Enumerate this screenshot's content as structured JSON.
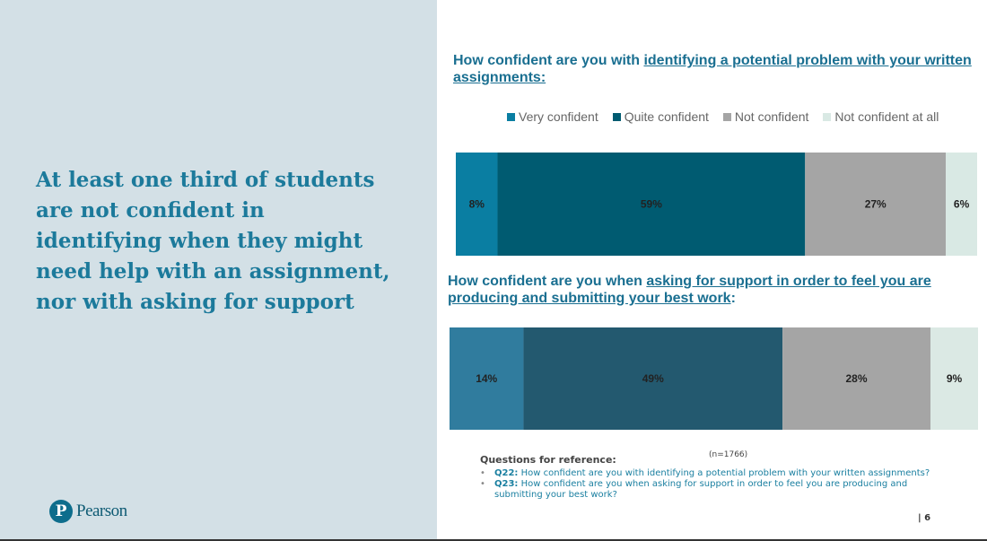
{
  "headline": "At least one third of students are not confident in identifying when they might need help with an assignment, nor with asking for support",
  "logo_text": "Pearson",
  "chart_data": [
    {
      "type": "bar",
      "stacked": true,
      "orientation": "horizontal",
      "title_plain": "How confident are you with ",
      "title_underlined": "identifying a potential problem with your written assignments:",
      "title_suffix": "",
      "categories": [
        "Very confident",
        "Quite confident",
        "Not confident",
        "Not confident at all"
      ],
      "values": [
        8,
        59,
        27,
        6
      ],
      "labels": [
        "8%",
        "59%",
        "27%",
        "6%"
      ],
      "colors": [
        "#0a7ea2",
        "#005b71",
        "#a5a5a5",
        "#d9e9e4"
      ]
    },
    {
      "type": "bar",
      "stacked": true,
      "orientation": "horizontal",
      "title_plain": "How confident are you when ",
      "title_underlined": "asking for support in order to feel you are producing and submitting your best work",
      "title_suffix": ":",
      "categories": [
        "Very confident",
        "Quite confident",
        "Not confident",
        "Not confident at all"
      ],
      "values": [
        14,
        49,
        28,
        9
      ],
      "labels": [
        "14%",
        "49%",
        "28%",
        "9%"
      ],
      "colors": [
        "#307c9e",
        "#23596f",
        "#a5a5a5",
        "#dbe9e4"
      ]
    }
  ],
  "legend": [
    {
      "label": "Very confident",
      "color": "#0a7ea2"
    },
    {
      "label": "Quite confident",
      "color": "#005b71"
    },
    {
      "label": "Not confident",
      "color": "#a5a5a5"
    },
    {
      "label": "Not confident at all",
      "color": "#d9e9e4"
    }
  ],
  "sample": "(n=1766)",
  "reference": {
    "heading": "Questions for reference:",
    "items": [
      {
        "id": "Q22:",
        "text": " How confident are you with identifying a potential problem with your written assignments?"
      },
      {
        "id": "Q23:",
        "text": " How confident are you when asking for support in order to feel you are producing and submitting your best work?"
      }
    ]
  },
  "page_number": "| 6"
}
